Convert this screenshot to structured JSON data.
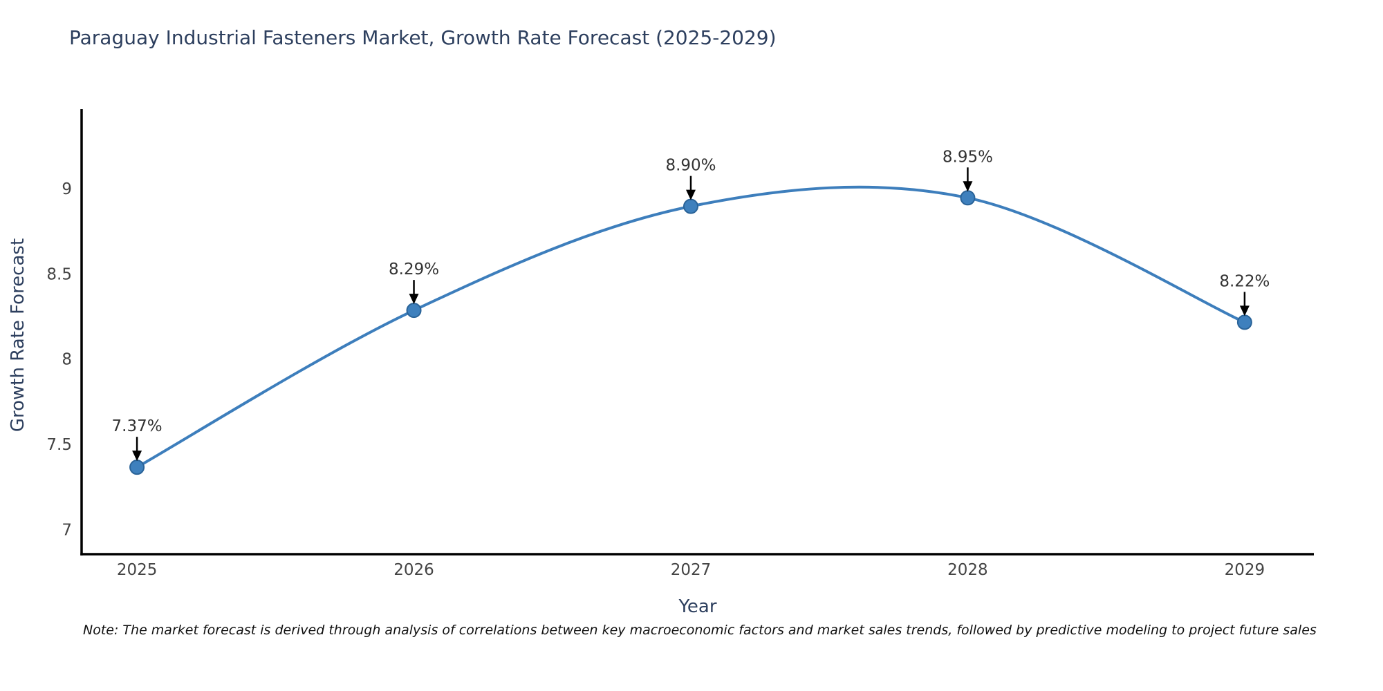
{
  "chart_data": {
    "type": "line",
    "title": "Paraguay Industrial Fasteners Market, Growth Rate Forecast (2025-2029)",
    "xlabel": "Year",
    "ylabel": "Growth Rate Forecast",
    "categories": [
      2025,
      2026,
      2027,
      2028,
      2029
    ],
    "values": [
      7.37,
      8.29,
      8.9,
      8.95,
      8.22
    ],
    "point_labels": [
      "7.37%",
      "8.29%",
      "8.90%",
      "8.95%",
      "8.22%"
    ],
    "x_tick_labels": [
      "2025",
      "2026",
      "2027",
      "2028",
      "2029"
    ],
    "y_ticks": [
      7,
      7.5,
      8,
      8.5,
      9
    ],
    "y_tick_labels": [
      "7",
      "7.5",
      "8",
      "8.5",
      "9"
    ],
    "x_range": [
      2024.8,
      2029.25
    ],
    "y_range": [
      6.86,
      9.47
    ],
    "line_shape": "spline",
    "grid": false,
    "legend": "none",
    "markers": true,
    "annotations": "percent value labels with black down arrows above each data point",
    "colors": {
      "line": "#3d7ebc",
      "marker_fill": "#3e80bd",
      "marker_edge": "#2a6398",
      "axis_line": "#000000",
      "tick_label": "#444444",
      "axis_title": "#2d3f5e",
      "title": "#2d3f5e",
      "annotation_text": "#333333",
      "annotation_arrow": "#000000",
      "background": "#ffffff"
    },
    "note": "Note: The market forecast is derived through analysis of correlations between key macroeconomic factors and market sales trends, followed by predictive modeling to project future sales"
  }
}
